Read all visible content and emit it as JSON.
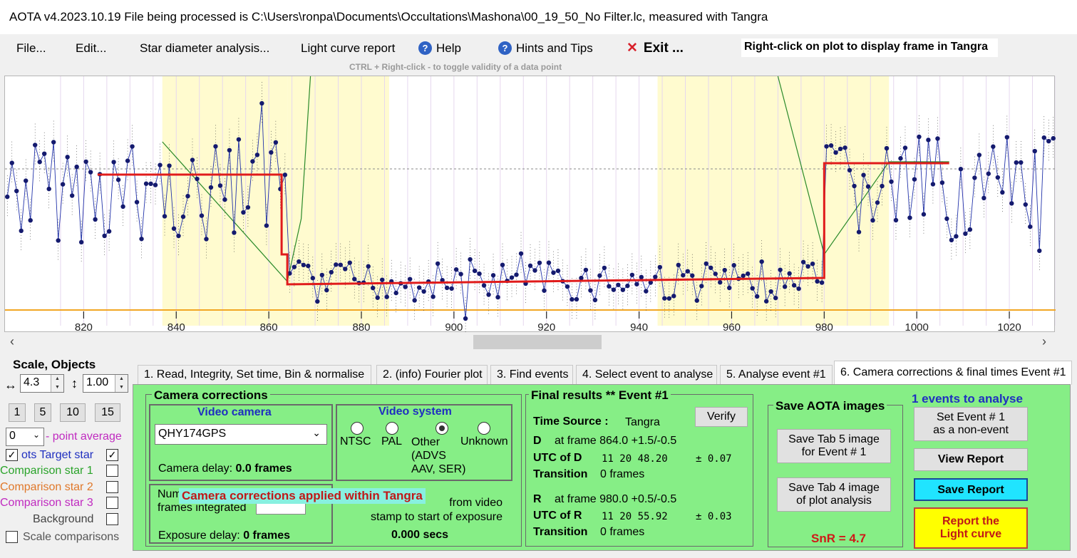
{
  "title_bar": {
    "text": "AOTA v4.2023.10.19    File being processed is C:\\Users\\ronpa\\Documents\\Occultations\\Mashona\\00_19_50_No Filter.lc, measured with Tangra"
  },
  "menu": {
    "file": "File...",
    "edit": "Edit...",
    "star_diameter": "Star diameter analysis...",
    "light_curve_report": "Light curve report",
    "help": "Help",
    "hints": "Hints and Tips",
    "exit": "Exit ...",
    "hint_right_click": "Right-click on plot to display frame in Tangra",
    "hint_ctrl": "CTRL + Right-click  -  to toggle validity of a data point"
  },
  "plot": {
    "x_ticks": [
      "820",
      "840",
      "860",
      "880",
      "900",
      "920",
      "940",
      "960",
      "980",
      "1000",
      "1020"
    ]
  },
  "chart_data": {
    "type": "line",
    "xlim": [
      803,
      1030
    ],
    "x_ticks": [
      820,
      840,
      860,
      880,
      900,
      920,
      940,
      960,
      980,
      1000,
      1020
    ],
    "event": {
      "D_frame": 864.0,
      "R_frame": 980.0,
      "baseline_level": "high",
      "event_level": "low"
    },
    "grid": true,
    "shaded_regions": [
      [
        837,
        864
      ],
      [
        864,
        886
      ],
      [
        944,
        980
      ],
      [
        980,
        994
      ]
    ],
    "colors": {
      "data": "#2233aa",
      "model": "#e01b1b",
      "shade": "#fffbcf",
      "baseline": "#f2a623",
      "dtrack": "#2a8a2a"
    }
  },
  "left_panel": {
    "scale_title": "Scale,  Objects",
    "h_scale": "4.3",
    "v_scale": "1.00",
    "scale_buttons": [
      "1",
      "5",
      "10",
      "15"
    ],
    "point_avg_value": "0",
    "point_avg_label": "- point average",
    "rows": [
      {
        "label": "ots  Target star",
        "color": "#1f2fc0",
        "checked": true
      },
      {
        "label": "Comparison star 1",
        "color": "#2aa32a",
        "checked": false
      },
      {
        "label": "Comparison star 2",
        "color": "#e0782a",
        "checked": false
      },
      {
        "label": "Comparison star 3",
        "color": "#c02ac0",
        "checked": false
      },
      {
        "label": "Background",
        "color": "#444444",
        "checked": false
      }
    ],
    "scale_comparisons": "Scale comparisons"
  },
  "tabs": [
    "1.  Read, Integrity, Set time, Bin & normalise",
    "2. (info)  Fourier plot",
    "3. Find events",
    "4. Select event to analyse",
    "5. Analyse event #1",
    "6. Camera corrections & final times Event #1"
  ],
  "camera": {
    "group_title": "Camera corrections",
    "video_camera_title": "Video camera",
    "camera_selected": "QHY174GPS",
    "camera_delay_label": "Camera delay:",
    "camera_delay_value": "0.0 frames",
    "video_system_title": "Video system",
    "systems": [
      "NTSC",
      "PAL",
      "Other\n(ADVS\nAAV, SER)",
      "Unknown"
    ],
    "selected_system": "Other",
    "num_frames_label": "Num\nframes integrated",
    "applied_banner": "Camera corrections applied within Tangra",
    "exposure_delay_label": "Exposure delay:",
    "exposure_delay_value": "0 frames",
    "offset_label": "from video\nstamp to start of exposure",
    "offset_value": "0.000 secs"
  },
  "final": {
    "title": "Final results  **  Event #1",
    "time_source_label": "Time Source :",
    "time_source_value": "Tangra",
    "verify": "Verify",
    "d_label": "D",
    "d_frame": "at frame 864.0  +1.5/-0.5",
    "utc_d_label": "UTC of D",
    "utc_d_value": "11 20 48.20",
    "utc_d_err": "± 0.07",
    "trans_label": "Transition",
    "trans_d_value": "0 frames",
    "r_label": "R",
    "r_frame": "at frame 980.0  +0.5/-0.5",
    "utc_r_label": "UTC of R",
    "utc_r_value": "11 20 55.92",
    "utc_r_err": "± 0.03",
    "trans_r_value": "0 frames",
    "snr": "SnR = 4.7"
  },
  "save": {
    "title": "Save AOTA images",
    "tab5": "Save Tab 5 image\nfor Event # 1",
    "tab4": "Save Tab 4 image\nof plot analysis"
  },
  "actions": {
    "events_to_analyse": "1  events to analyse",
    "set_non_event": "Set Event # 1\nas a non-event",
    "view_report": "View Report",
    "save_report": "Save Report",
    "report_light_curve": "Report the\nLight curve"
  }
}
